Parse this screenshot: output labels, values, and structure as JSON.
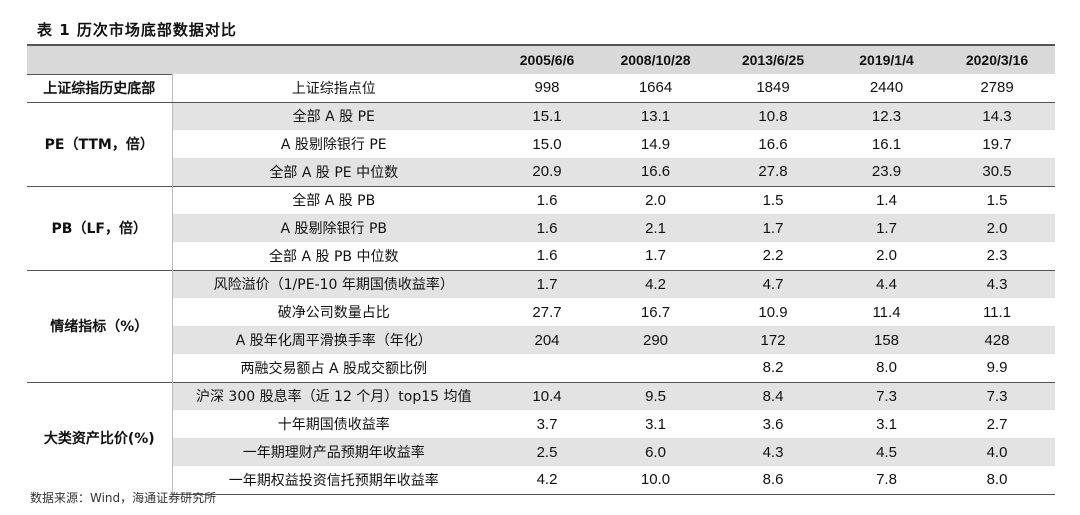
{
  "title": "表 1  历次市场底部数据对比",
  "columns": [
    "2005/6/6",
    "2008/10/28",
    "2013/6/25",
    "2019/1/4",
    "2020/3/16"
  ],
  "groups": [
    {
      "category": "上证综指历史底部",
      "rows": [
        {
          "metric": "上证综指点位",
          "values": [
            "998",
            "1664",
            "1849",
            "2440",
            "2789"
          ]
        }
      ]
    },
    {
      "category": "PE（TTM，倍）",
      "rows": [
        {
          "metric": "全部 A 股 PE",
          "values": [
            "15.1",
            "13.1",
            "10.8",
            "12.3",
            "14.3"
          ]
        },
        {
          "metric": "A 股剔除银行 PE",
          "values": [
            "15.0",
            "14.9",
            "16.6",
            "16.1",
            "19.7"
          ]
        },
        {
          "metric": "全部 A 股 PE 中位数",
          "values": [
            "20.9",
            "16.6",
            "27.8",
            "23.9",
            "30.5"
          ]
        }
      ]
    },
    {
      "category": "PB（LF，倍）",
      "rows": [
        {
          "metric": "全部 A 股 PB",
          "values": [
            "1.6",
            "2.0",
            "1.5",
            "1.4",
            "1.5"
          ]
        },
        {
          "metric": "A 股剔除银行 PB",
          "values": [
            "1.6",
            "2.1",
            "1.7",
            "1.7",
            "2.0"
          ]
        },
        {
          "metric": "全部 A 股 PB 中位数",
          "values": [
            "1.6",
            "1.7",
            "2.2",
            "2.0",
            "2.3"
          ]
        }
      ]
    },
    {
      "category": "情绪指标（%）",
      "rows": [
        {
          "metric": "风险溢价（1/PE-10 年期国债收益率）",
          "values": [
            "1.7",
            "4.2",
            "4.7",
            "4.4",
            "4.3"
          ]
        },
        {
          "metric": "破净公司数量占比",
          "values": [
            "27.7",
            "16.7",
            "10.9",
            "11.4",
            "11.1"
          ]
        },
        {
          "metric": "A 股年化周平滑换手率（年化）",
          "values": [
            "204",
            "290",
            "172",
            "158",
            "428"
          ]
        },
        {
          "metric": "两融交易额占 A 股成交额比例",
          "values": [
            "",
            "",
            "8.2",
            "8.0",
            "9.9"
          ]
        }
      ]
    },
    {
      "category": "大类资产比价(%)",
      "rows": [
        {
          "metric": "沪深 300 股息率（近 12 个月）top15 均值",
          "values": [
            "10.4",
            "9.5",
            "8.4",
            "7.3",
            "7.3"
          ]
        },
        {
          "metric": "十年期国债收益率",
          "values": [
            "3.7",
            "3.1",
            "3.6",
            "3.1",
            "2.7"
          ]
        },
        {
          "metric": "一年期理财产品预期年收益率",
          "values": [
            "2.5",
            "6.0",
            "4.3",
            "4.5",
            "4.0"
          ]
        },
        {
          "metric": "一年期权益投资信托预期年收益率",
          "values": [
            "4.2",
            "10.0",
            "8.6",
            "7.8",
            "8.0"
          ]
        }
      ]
    }
  ],
  "source": "数据来源：Wind，海通证券研究所"
}
